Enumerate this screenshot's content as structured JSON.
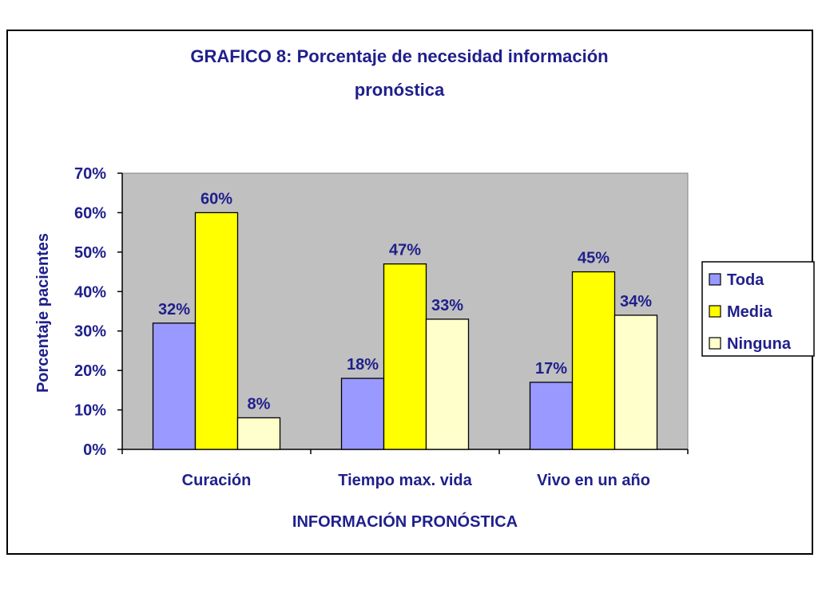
{
  "chart_data": {
    "type": "bar",
    "title_lines": [
      "GRAFICO 8: Porcentaje de necesidad  información",
      "pronóstica"
    ],
    "xlabel": "INFORMACIÓN PRONÓSTICA",
    "ylabel": "Porcentaje pacientes",
    "categories": [
      "Curación",
      "Tiempo max. vida",
      "Vivo en un año"
    ],
    "ylim": [
      0,
      0.7
    ],
    "yticks": [
      "0%",
      "10%",
      "20%",
      "30%",
      "40%",
      "50%",
      "60%",
      "70%"
    ],
    "series": [
      {
        "name": "Toda",
        "values": [
          0.32,
          0.18,
          0.17
        ],
        "labels": [
          "32%",
          "18%",
          "17%"
        ],
        "color": "#9999ff"
      },
      {
        "name": "Media",
        "values": [
          0.6,
          0.47,
          0.45
        ],
        "labels": [
          "60%",
          "47%",
          "45%"
        ],
        "color": "#ffff00"
      },
      {
        "name": "Ninguna",
        "values": [
          0.08,
          0.33,
          0.34
        ],
        "labels": [
          "8%",
          "33%",
          "34%"
        ],
        "color": "#ffffcc"
      }
    ],
    "plot_background": "#c0c0c0",
    "text_color": "#1f1f8c",
    "grid": false,
    "legend_position": "right"
  }
}
